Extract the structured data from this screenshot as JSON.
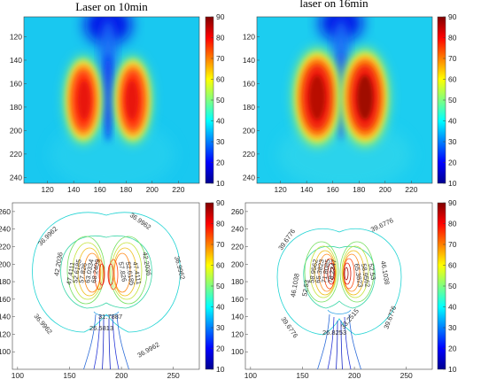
{
  "chart_data": [
    {
      "type": "heatmap",
      "title": "Laser on 10min",
      "xlabel": "",
      "ylabel": "",
      "xlim": [
        102,
        236
      ],
      "ylim": [
        245,
        103
      ],
      "xticks": [
        120,
        140,
        160,
        180,
        200,
        220
      ],
      "yticks": [
        120,
        140,
        160,
        180,
        200,
        220,
        240
      ],
      "colorbar": {
        "range": [
          10,
          90
        ],
        "ticks": [
          10,
          20,
          30,
          40,
          50,
          60,
          70,
          80,
          90
        ]
      },
      "background_value": 38,
      "hotspots": [
        {
          "x": 155,
          "y": 178,
          "peak": 84
        },
        {
          "x": 187,
          "y": 178,
          "peak": 84
        }
      ],
      "cold_plume": {
        "x": 170,
        "y_top": 103,
        "y_bottom": 205,
        "min": 10
      }
    },
    {
      "type": "heatmap",
      "title": "laser on 16min",
      "xlabel": "",
      "ylabel": "",
      "xlim": [
        102,
        236
      ],
      "ylim": [
        245,
        103
      ],
      "xticks": [
        120,
        140,
        160,
        180,
        200,
        220
      ],
      "yticks": [
        120,
        140,
        160,
        180,
        200,
        220,
        240
      ],
      "colorbar": {
        "range": [
          10,
          90
        ],
        "ticks": [
          10,
          20,
          30,
          40,
          50,
          60,
          70,
          80,
          90
        ]
      },
      "background_value": 40,
      "hotspots": [
        {
          "x": 155,
          "y": 177,
          "peak": 90
        },
        {
          "x": 187,
          "y": 177,
          "peak": 92
        }
      ],
      "cold_plume": {
        "x": 170,
        "y_top": 103,
        "y_bottom": 205,
        "min": 10
      }
    },
    {
      "type": "contour",
      "title": "",
      "xlim": [
        95,
        275
      ],
      "ylim": [
        80,
        270
      ],
      "xticks": [
        100,
        150,
        200,
        250
      ],
      "yticks": [
        100,
        120,
        140,
        160,
        180,
        200,
        220,
        240,
        260
      ],
      "colorbar": {
        "range": [
          10,
          90
        ],
        "ticks": [
          10,
          20,
          30,
          40,
          50,
          60,
          70,
          80,
          90
        ]
      },
      "contour_labels": [
        "36.9962",
        "36.9962",
        "36.9962",
        "36.9962",
        "42.2036",
        "42.2036",
        "47.4111",
        "52.6185",
        "57.826",
        "63.0334",
        "68.2409",
        "47.4111",
        "52.6185",
        "57.826",
        "31.7887",
        "26.5813",
        "36.9962"
      ]
    },
    {
      "type": "contour",
      "title": "",
      "xlim": [
        95,
        275
      ],
      "ylim": [
        80,
        270
      ],
      "xticks": [
        100,
        150,
        200,
        250
      ],
      "yticks": [
        100,
        120,
        140,
        160,
        180,
        200,
        220,
        240,
        260
      ],
      "colorbar": {
        "range": [
          10,
          90
        ],
        "ticks": [
          10,
          20,
          30,
          40,
          50,
          60,
          70,
          80,
          90
        ]
      },
      "contour_labels": [
        "39.6776",
        "39.6776",
        "39.6776",
        "39.6776",
        "46.1038",
        "46.1038",
        "52.53",
        "58.9562",
        "65.3823",
        "71.8085",
        "78.2347",
        "52.53",
        "58.9562",
        "65.3823",
        "33.2515",
        "26.8253"
      ]
    }
  ]
}
